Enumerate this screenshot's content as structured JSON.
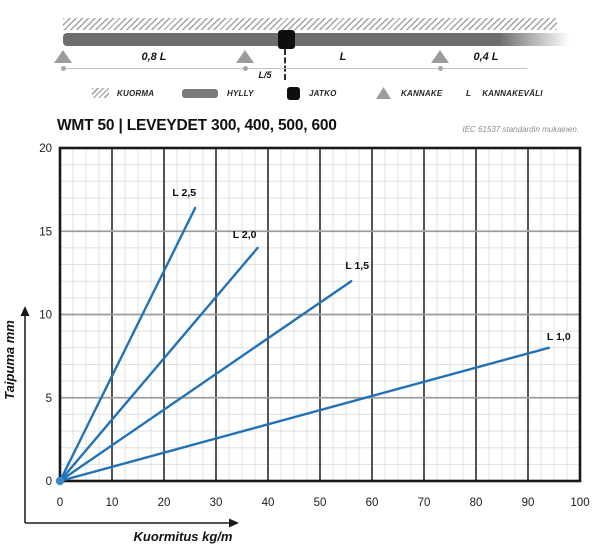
{
  "schematic": {
    "span_labels": {
      "left": "0,8 L",
      "middle": "L",
      "right": "0,4 L"
    },
    "joint_offset_label": "L/5",
    "legend": {
      "items": [
        {
          "icon": "load-hatch-icon",
          "label": "KUORMA"
        },
        {
          "icon": "shelf-icon",
          "label": "HYLLY"
        },
        {
          "icon": "joint-icon",
          "label": "JATKO"
        },
        {
          "icon": "support-icon",
          "label": "KANNAKE"
        },
        {
          "icon": "span-symbol",
          "symbol": "L",
          "label": "KANNAKEVÄLI"
        }
      ]
    }
  },
  "header": {
    "title": "WMT 50 | LEVEYDET 300, 400, 500, 600",
    "standard_note": "IEC 61537 standardin mukainen."
  },
  "chart_data": {
    "type": "line",
    "title": "WMT 50 | LEVEYDET 300, 400, 500, 600",
    "xlabel": "Kuormitus kg/m",
    "ylabel": "Taipuma mm",
    "xlim": [
      0,
      100
    ],
    "ylim": [
      0,
      20
    ],
    "x_major_step": 10,
    "x_minor_step": 2.5,
    "y_major_step": 5,
    "y_minor_step": 1,
    "x_ticks": [
      0,
      10,
      20,
      30,
      40,
      50,
      60,
      70,
      80,
      90,
      100
    ],
    "y_ticks": [
      0,
      5,
      10,
      15,
      20
    ],
    "grid": true,
    "legend_position": "inline-end-of-line",
    "line_color": "#2173b6",
    "origin_marker": {
      "x": 0,
      "y": 0,
      "color": "#3f86c8"
    },
    "series": [
      {
        "name": "L 2,5",
        "x": [
          0,
          26
        ],
        "y": [
          0,
          16.4
        ],
        "label_offset": [
          -11,
          -12
        ]
      },
      {
        "name": "L 2,0",
        "x": [
          0,
          38
        ],
        "y": [
          0,
          14.0
        ],
        "label_offset": [
          -13,
          -10
        ]
      },
      {
        "name": "L 1,5",
        "x": [
          0,
          56
        ],
        "y": [
          0,
          12.0
        ],
        "label_offset": [
          6,
          -12
        ]
      },
      {
        "name": "L 1,0",
        "x": [
          0,
          94
        ],
        "y": [
          0,
          8.0
        ],
        "label_offset": [
          10,
          -8
        ]
      }
    ]
  }
}
